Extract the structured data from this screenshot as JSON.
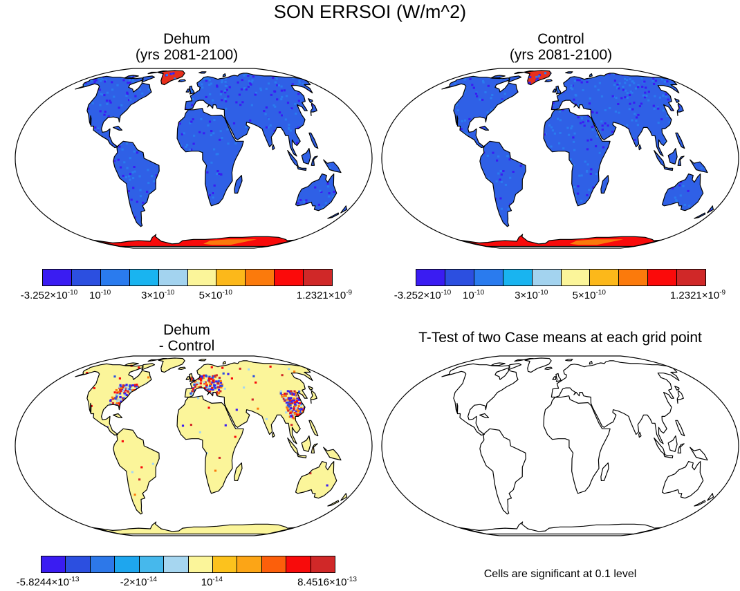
{
  "title": "SON ERRSOI (W/m^2)",
  "panels": [
    {
      "id": "dehum",
      "title_line1": "Dehum",
      "title_line2": "(yrs 2081-2100)",
      "fill": "field"
    },
    {
      "id": "control",
      "title_line1": "Control",
      "title_line2": "(yrs 2081-2100)",
      "fill": "field"
    },
    {
      "id": "diff",
      "title_line1": "Dehum",
      "title_line2": "- Control",
      "fill": "diff"
    },
    {
      "id": "ttest",
      "title_line1": "T-Test of two Case means at each grid point",
      "title_line2": "",
      "fill": "none"
    }
  ],
  "ttest_note": "Cells are significant at 0.1 level",
  "colorbars": {
    "field": {
      "colors": [
        "#3a1cf2",
        "#2c4fe0",
        "#2a7bee",
        "#19b4f0",
        "#a3d3ef",
        "#fbf59a",
        "#fcb81a",
        "#fb7a0c",
        "#fb0a0a",
        "#d02828"
      ],
      "labels": [
        {
          "text": "-3.252×10",
          "exp": "-10",
          "pos": 0.0
        },
        {
          "text": "10",
          "exp": "-10",
          "pos": 0.2
        },
        {
          "text": "3×10",
          "exp": "-10",
          "pos": 0.4
        },
        {
          "text": "5×10",
          "exp": "-10",
          "pos": 0.6
        },
        {
          "text": "1.2321×10",
          "exp": "-9",
          "pos": 1.0
        }
      ]
    },
    "diff": {
      "colors": [
        "#3a1cf2",
        "#2c4fe0",
        "#2d78e9",
        "#1ea6ee",
        "#46b8ec",
        "#a6d6f0",
        "#fbf59a",
        "#fcc21d",
        "#fca516",
        "#fc5f0b",
        "#f80b0b",
        "#d02828"
      ],
      "labels": [
        {
          "text": "-5.8244×10",
          "exp": "-13",
          "pos": 0.0
        },
        {
          "text": "-2×10",
          "exp": "-14",
          "pos": 0.3333
        },
        {
          "text": "10",
          "exp": "-14",
          "pos": 0.5833
        },
        {
          "text": "8.4516×10",
          "exp": "-13",
          "pos": 1.0
        }
      ]
    }
  },
  "land_colors": {
    "field_main": "#2f60e6",
    "field_speckle": "#2a7bee",
    "field_speckle2": "#3a1cf2",
    "greenland": "#e8301c",
    "antarctica": "#f80b0b",
    "antarctica_hot": "#fb7a0c",
    "diff_main": "#fbf59a",
    "diff_speckle": [
      "#d02828",
      "#2c4fe0",
      "#fb7a0c",
      "#a6d6f0",
      "#f80b0b",
      "#3a1cf2"
    ]
  }
}
